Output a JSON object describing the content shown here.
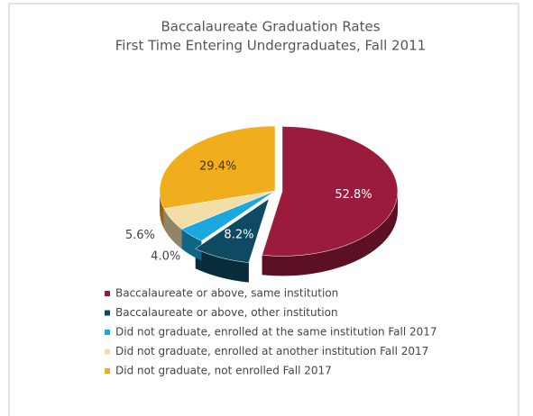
{
  "chart_data": {
    "type": "pie",
    "title": "Baccalaureate Graduation Rates",
    "subtitle": "First Time Entering Undergraduates, Fall 2011",
    "categories": [
      "Baccalaureate or above, same institution",
      "Baccalaureate or above, other institution",
      "Did not graduate, enrolled at the same institution Fall 2017",
      "Did not graduate, enrolled at another institution Fall 2017",
      "Did not graduate, not enrolled Fall 2017"
    ],
    "values": [
      52.8,
      8.2,
      4.0,
      5.6,
      29.4
    ],
    "value_labels": [
      "52.8%",
      "8.2%",
      "4.0%",
      "5.6%",
      "29.4%"
    ],
    "colors": [
      "#9b1b3c",
      "#0f4a63",
      "#1ba8de",
      "#f3dea8",
      "#f1ae1c"
    ],
    "legend": "bottom"
  }
}
